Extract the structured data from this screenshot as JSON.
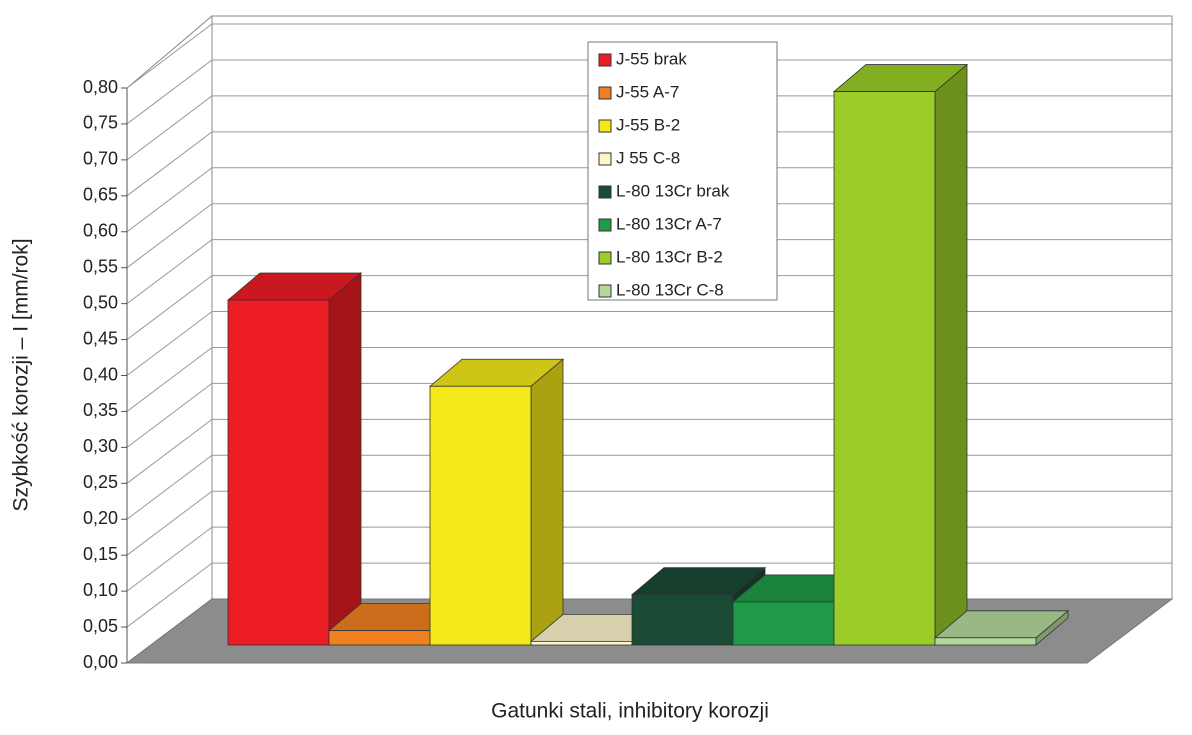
{
  "chart_data": {
    "type": "bar3d",
    "y_label": "Szybkość korozji – I [mm/rok]",
    "x_label": "Gatunki stali, inhibitory korozji",
    "ylim": [
      0,
      0.8
    ],
    "yticks": [
      {
        "value": 0,
        "label": "0,00"
      },
      {
        "value": 0.05,
        "label": "0,05"
      },
      {
        "value": 0.1,
        "label": "0,10"
      },
      {
        "value": 0.15,
        "label": "0,15"
      },
      {
        "value": 0.2,
        "label": "0,20"
      },
      {
        "value": 0.25,
        "label": "0,25"
      },
      {
        "value": 0.3,
        "label": "0,30"
      },
      {
        "value": 0.35,
        "label": "0,35"
      },
      {
        "value": 0.4,
        "label": "0,40"
      },
      {
        "value": 0.45,
        "label": "0,45"
      },
      {
        "value": 0.5,
        "label": "0,50"
      },
      {
        "value": 0.55,
        "label": "0,55"
      },
      {
        "value": 0.6,
        "label": "0,60"
      },
      {
        "value": 0.65,
        "label": "0,65"
      },
      {
        "value": 0.7,
        "label": "0,70"
      },
      {
        "value": 0.75,
        "label": "0,75"
      },
      {
        "value": 0.8,
        "label": "0,80"
      }
    ],
    "grid": true,
    "legend": "top-center",
    "series": [
      {
        "name": "J-55 brak",
        "color": "#ec1c24",
        "values": [
          0.48
        ]
      },
      {
        "name": "J-55 A-7",
        "color": "#f08020",
        "values": [
          0.02
        ]
      },
      {
        "name": "J-55 B-2",
        "color": "#f4e81a",
        "values": [
          0.36
        ]
      },
      {
        "name": "J 55 C-8",
        "color": "#fdf5cc",
        "values": [
          0.005
        ]
      },
      {
        "name": "L-80 13Cr brak",
        "color": "#1b4a35",
        "values": [
          0.07
        ]
      },
      {
        "name": "L-80 13Cr A-7",
        "color": "#1f9a48",
        "values": [
          0.06
        ]
      },
      {
        "name": "L-80 13Cr B-2",
        "color": "#9acd28",
        "values": [
          0.77
        ]
      },
      {
        "name": "L-80 13Cr C-8",
        "color": "#b5d99c",
        "values": [
          0.01
        ]
      }
    ]
  }
}
